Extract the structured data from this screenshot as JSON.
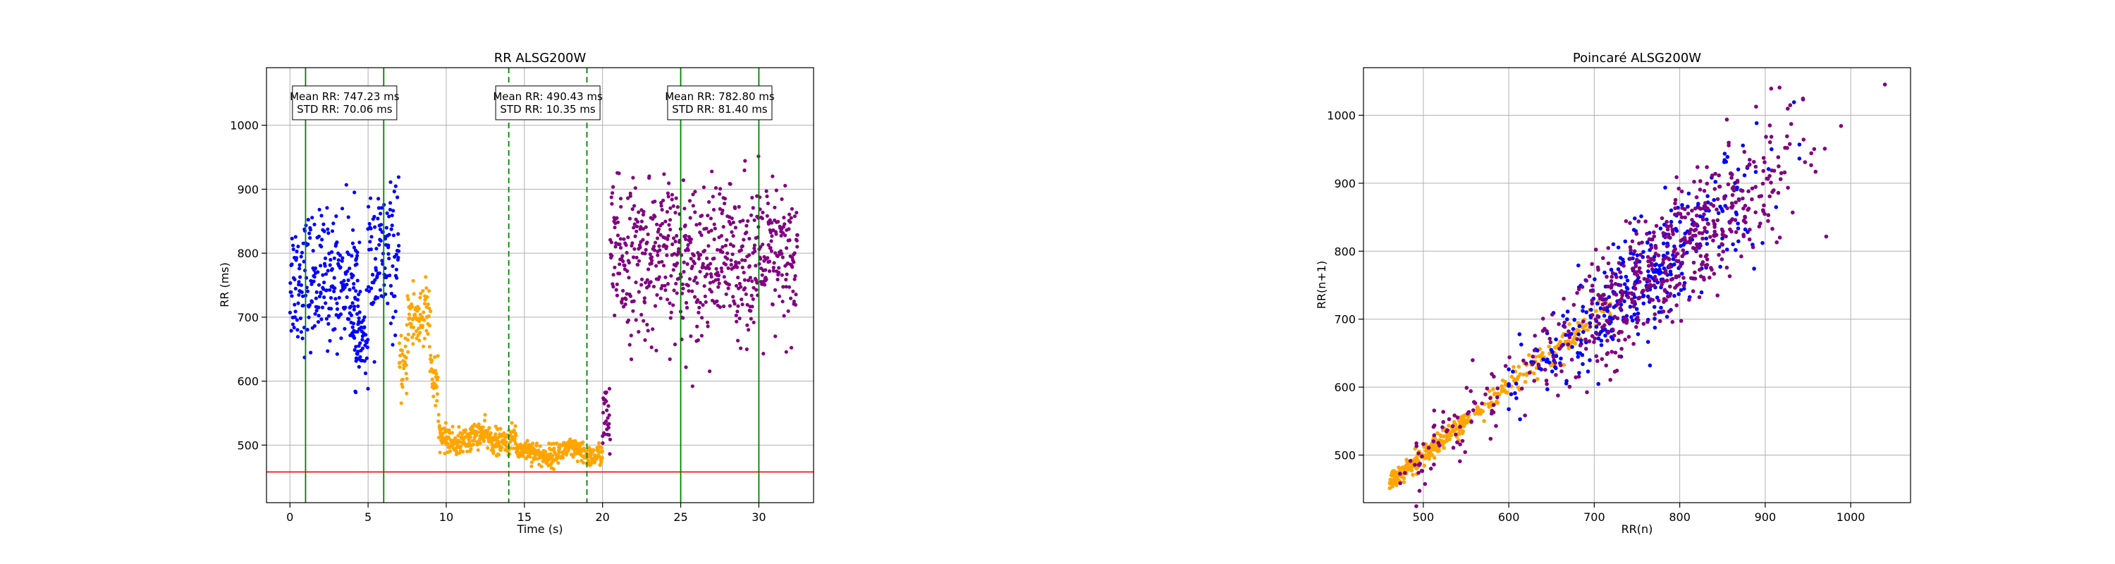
{
  "figure": {
    "background": "#ffffff"
  },
  "chart_data": [
    {
      "type": "scatter",
      "title": "RR ALSG200W",
      "xlabel": "Time (s)",
      "ylabel": "RR (ms)",
      "xlim": [
        -1.5,
        33.5
      ],
      "ylim": [
        410,
        1090
      ],
      "xticks": [
        0,
        5,
        10,
        15,
        20,
        25,
        30
      ],
      "yticks": [
        500,
        600,
        700,
        800,
        900,
        1000
      ],
      "grid": true,
      "series": [
        {
          "color": "#0000ff",
          "x_range": [
            0,
            7
          ],
          "segments": [
            {
              "x0": 0,
              "x1": 4.5,
              "mean": 760,
              "spread": 60
            },
            {
              "x0": 4.0,
              "x1": 5.0,
              "mean": 660,
              "spread": 35
            },
            {
              "x0": 5.0,
              "x1": 7.0,
              "mean": 790,
              "spread": 65
            }
          ]
        },
        {
          "color": "#ffa500",
          "segments": [
            {
              "x0": 7.0,
              "x1": 7.5,
              "mean": 620,
              "spread": 25
            },
            {
              "x0": 7.5,
              "x1": 9.0,
              "mean": 700,
              "spread": 35
            },
            {
              "x0": 9.0,
              "x1": 9.5,
              "mean": 600,
              "spread": 30
            },
            {
              "x0": 9.5,
              "x1": 14.5,
              "mean": 510,
              "spread": 12
            },
            {
              "x0": 14.5,
              "x1": 20.0,
              "mean": 488,
              "spread": 10
            }
          ]
        },
        {
          "color": "#800080",
          "segments": [
            {
              "x0": 20.0,
              "x1": 20.5,
              "mean": 540,
              "spread": 35
            },
            {
              "x0": 20.5,
              "x1": 32.5,
              "mean": 790,
              "spread": 70
            }
          ]
        }
      ],
      "hlines": [
        {
          "y": 458,
          "color": "#ff0000"
        }
      ],
      "vlines": [
        {
          "x": 1.0,
          "color": "#008000",
          "style": "solid"
        },
        {
          "x": 6.0,
          "color": "#008000",
          "style": "solid"
        },
        {
          "x": 14.0,
          "color": "#008000",
          "style": "dashed"
        },
        {
          "x": 19.0,
          "color": "#008000",
          "style": "dashed"
        },
        {
          "x": 25.0,
          "color": "#008000",
          "style": "solid"
        },
        {
          "x": 30.0,
          "color": "#008000",
          "style": "solid"
        }
      ],
      "annotations": [
        {
          "x": 3.5,
          "y": 1035,
          "lines": [
            "Mean RR: 747.23 ms",
            "STD RR: 70.06 ms"
          ]
        },
        {
          "x": 16.5,
          "y": 1035,
          "lines": [
            "Mean RR: 490.43 ms",
            "STD RR: 10.35 ms"
          ]
        },
        {
          "x": 27.5,
          "y": 1035,
          "lines": [
            "Mean RR: 782.80 ms",
            "STD RR: 81.40 ms"
          ]
        }
      ]
    },
    {
      "type": "scatter",
      "title": "Poincaré ALSG200W",
      "xlabel": "RR(n)",
      "ylabel": "RR(n+1)",
      "xlim": [
        430,
        1070
      ],
      "ylim": [
        430,
        1070
      ],
      "xticks": [
        500,
        600,
        700,
        800,
        900,
        1000
      ],
      "yticks": [
        500,
        600,
        700,
        800,
        900,
        1000
      ],
      "grid": true,
      "series": [
        {
          "color": "#ffa500",
          "x_range": [
            460,
            720
          ],
          "spread": 10
        },
        {
          "color": "#0000ff",
          "x_range": [
            600,
            940
          ],
          "spread": 35
        },
        {
          "color": "#800080",
          "x_range": [
            470,
            1040
          ],
          "spread": 40
        }
      ]
    }
  ]
}
